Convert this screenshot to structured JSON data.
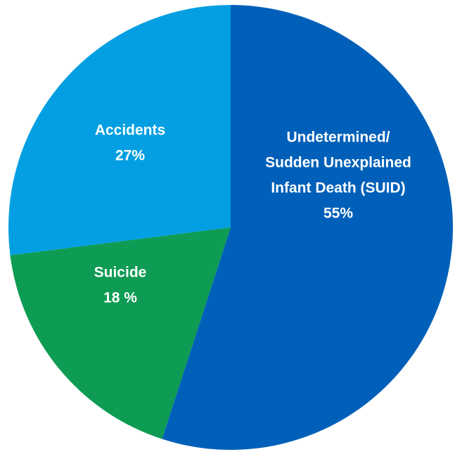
{
  "chart_data": {
    "type": "pie",
    "title": "",
    "slices": [
      {
        "name": "Undetermined/ Sudden Unexplained Infant Death (SUID)",
        "label_lines": [
          "Undetermined/",
          "Sudden Unexplained",
          "Infant Death (SUID)"
        ],
        "value": 55,
        "value_label": "55%",
        "color": "#0060b9"
      },
      {
        "name": "Suicide",
        "label_lines": [
          "Suicide"
        ],
        "value": 18,
        "value_label": "18 %",
        "color": "#0e9b53"
      },
      {
        "name": "Accidents",
        "label_lines": [
          "Accidents"
        ],
        "value": 27,
        "value_label": "27%",
        "color": "#049fe2"
      }
    ],
    "start_angle_deg": 0,
    "direction": "clockwise",
    "legend": "none"
  }
}
